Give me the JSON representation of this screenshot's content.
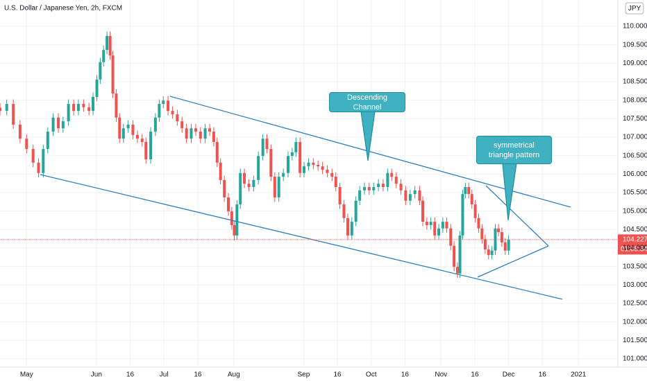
{
  "header": {
    "title": "U.S. Dollar / Japanese Yen, 2h, FXCM"
  },
  "chart_data": {
    "type": "candlestick",
    "x": [
      -11.8,
      -8.8,
      -5.9,
      -2.9,
      0,
      2.9,
      5.3,
      7.4,
      9.4,
      11.8,
      14.1,
      16.2,
      18.6,
      20.9,
      23.0,
      25.3,
      27.7,
      29.5,
      31.2,
      32.7,
      34.2,
      35.7,
      37.1,
      38.3,
      39.8,
      41.3,
      43.0,
      45.1,
      47.2,
      49.2,
      51.3,
      53.0,
      55.1,
      57.2,
      58.9,
      60.7,
      62.8,
      64.8,
      66.9,
      69.0,
      71.0,
      73.1,
      75.1,
      77.2,
      79.3,
      81.3,
      83.1,
      84.6,
      86.1,
      87.8,
      89.6,
      91.1,
      92.2,
      93.4,
      94.9,
      96.7,
      98.7,
      100.8,
      102.9,
      104.9,
      106.7,
      108.5,
      110.2,
      112.0,
      114.0,
      116.1,
      117.9,
      119.6,
      121.4,
      123.2,
      125.2,
      127.3,
      129.4,
      131.4,
      133.5,
      135.6,
      137.3,
      139.1,
      140.9,
      142.6,
      144.4,
      146.2,
      147.9,
      150.0,
      152.1,
      154.1,
      156.2,
      158.3,
      160.3,
      162.1,
      164.1,
      166.2,
      168.3,
      170.3,
      172.4,
      174.5,
      175.9,
      177.7,
      179.5,
      181.2,
      183.0,
      184.8,
      186.5,
      188.3,
      189.8,
      191.3,
      192.4,
      193.6,
      194.8,
      196.3,
      197.7,
      199.2,
      200.7,
      202.2,
      203.6,
      205.1,
      206.6,
      208.1,
      209.5,
      211.0,
      212.5,
      214.0
    ],
    "open": [
      107.8,
      107.71,
      107.9,
      107.34,
      106.96,
      106.68,
      106.31,
      106.03,
      106.68,
      107.15,
      107.53,
      107.24,
      107.43,
      107.9,
      107.71,
      107.9,
      107.81,
      107.71,
      108.09,
      108.56,
      109.03,
      109.36,
      109.74,
      109.21,
      108.18,
      107.53,
      106.96,
      107.24,
      107.34,
      107.06,
      106.96,
      106.87,
      106.4,
      107.15,
      107.53,
      107.9,
      107.99,
      107.71,
      107.62,
      107.43,
      107.24,
      106.96,
      107.24,
      107.15,
      106.96,
      107.24,
      107.15,
      106.87,
      106.31,
      105.84,
      105.37,
      104.99,
      104.62,
      104.34,
      105.18,
      106.03,
      105.74,
      105.65,
      105.84,
      106.49,
      106.96,
      106.68,
      105.93,
      105.37,
      105.93,
      106.03,
      106.49,
      106.59,
      106.87,
      106.03,
      106.21,
      106.31,
      106.25,
      106.21,
      106.12,
      106.03,
      105.93,
      105.65,
      105.18,
      104.81,
      104.34,
      104.71,
      105.28,
      105.56,
      105.65,
      105.56,
      105.65,
      105.74,
      105.65,
      106.03,
      105.93,
      105.74,
      105.56,
      105.28,
      105.46,
      105.56,
      105.28,
      104.71,
      104.62,
      104.71,
      104.34,
      104.53,
      104.71,
      104.53,
      104.06,
      103.49,
      103.31,
      104.34,
      105.46,
      105.65,
      105.46,
      105.18,
      104.81,
      104.53,
      104.24,
      103.96,
      103.81,
      103.93,
      104.53,
      104.43,
      104.15,
      103.93
    ],
    "high": [
      107.92,
      108.02,
      108.02,
      107.46,
      107.08,
      106.8,
      106.43,
      106.8,
      107.27,
      107.65,
      107.65,
      107.55,
      108.02,
      108.02,
      108.02,
      108.02,
      107.93,
      108.21,
      108.68,
      109.15,
      109.48,
      109.86,
      109.86,
      109.33,
      108.3,
      107.65,
      107.36,
      107.46,
      107.46,
      107.18,
      107.08,
      106.99,
      107.27,
      107.65,
      108.02,
      108.11,
      108.11,
      107.83,
      107.74,
      107.55,
      107.36,
      107.36,
      107.36,
      107.27,
      107.36,
      107.36,
      107.27,
      106.99,
      106.43,
      105.96,
      105.49,
      105.11,
      104.74,
      105.3,
      106.15,
      106.15,
      105.86,
      105.96,
      106.61,
      107.08,
      107.08,
      106.8,
      106.05,
      106.05,
      106.15,
      106.61,
      106.71,
      106.99,
      106.99,
      106.33,
      106.43,
      106.43,
      106.37,
      106.33,
      106.24,
      106.15,
      106.05,
      105.77,
      105.3,
      104.93,
      104.83,
      105.4,
      105.68,
      105.77,
      105.77,
      105.77,
      105.86,
      105.86,
      106.15,
      106.15,
      106.05,
      105.86,
      105.68,
      105.58,
      105.68,
      105.68,
      105.4,
      104.83,
      104.83,
      104.83,
      104.65,
      104.83,
      104.83,
      104.65,
      104.18,
      103.61,
      104.46,
      105.58,
      105.77,
      105.77,
      105.58,
      105.3,
      104.93,
      104.65,
      104.36,
      104.08,
      104.05,
      104.65,
      104.65,
      104.55,
      104.27,
      104.35
    ],
    "low": [
      107.59,
      107.59,
      107.22,
      106.84,
      106.56,
      106.19,
      105.91,
      105.91,
      106.56,
      107.03,
      107.12,
      107.12,
      107.31,
      107.59,
      107.59,
      107.69,
      107.59,
      107.59,
      107.97,
      108.44,
      108.91,
      109.24,
      109.09,
      108.06,
      107.41,
      106.84,
      106.84,
      107.12,
      106.94,
      106.84,
      106.75,
      106.28,
      106.28,
      107.03,
      107.41,
      107.78,
      107.59,
      107.5,
      107.31,
      107.12,
      106.84,
      106.84,
      107.03,
      106.84,
      106.84,
      107.03,
      106.75,
      106.19,
      105.72,
      105.25,
      104.87,
      104.5,
      104.2,
      104.22,
      105.06,
      105.62,
      105.53,
      105.53,
      105.72,
      106.37,
      106.56,
      105.81,
      105.25,
      105.25,
      105.81,
      105.91,
      106.37,
      106.47,
      105.91,
      105.91,
      106.09,
      106.13,
      106.09,
      106.0,
      105.91,
      105.81,
      105.53,
      105.06,
      104.69,
      104.22,
      104.22,
      104.59,
      105.16,
      105.44,
      105.44,
      105.44,
      105.53,
      105.53,
      105.53,
      105.81,
      105.62,
      105.44,
      105.16,
      105.16,
      105.34,
      105.16,
      104.59,
      104.5,
      104.5,
      104.22,
      104.22,
      104.41,
      104.41,
      103.94,
      103.37,
      103.19,
      103.19,
      104.22,
      105.34,
      105.34,
      105.06,
      104.69,
      104.41,
      104.12,
      103.84,
      103.69,
      103.69,
      103.81,
      104.31,
      104.03,
      103.81,
      103.81
    ],
    "close": [
      107.71,
      107.9,
      107.34,
      106.96,
      106.68,
      106.31,
      106.03,
      106.68,
      107.15,
      107.53,
      107.24,
      107.43,
      107.9,
      107.71,
      107.9,
      107.81,
      107.71,
      108.09,
      108.56,
      109.03,
      109.36,
      109.74,
      109.21,
      108.18,
      107.53,
      106.96,
      107.24,
      107.34,
      107.06,
      106.96,
      106.87,
      106.4,
      107.15,
      107.53,
      107.9,
      107.99,
      107.71,
      107.62,
      107.43,
      107.24,
      106.96,
      107.24,
      107.15,
      106.96,
      107.24,
      107.15,
      106.87,
      106.31,
      105.84,
      105.37,
      104.99,
      104.62,
      104.34,
      105.18,
      106.03,
      105.74,
      105.65,
      105.84,
      106.49,
      106.96,
      106.68,
      105.93,
      105.37,
      105.93,
      106.03,
      106.49,
      106.59,
      106.87,
      106.03,
      106.21,
      106.31,
      106.25,
      106.21,
      106.12,
      106.03,
      105.93,
      105.65,
      105.18,
      104.81,
      104.34,
      104.71,
      105.28,
      105.56,
      105.65,
      105.56,
      105.65,
      105.74,
      105.65,
      106.03,
      105.93,
      105.74,
      105.56,
      105.28,
      105.46,
      105.56,
      105.28,
      104.71,
      104.62,
      104.71,
      104.34,
      104.53,
      104.71,
      104.53,
      104.06,
      103.49,
      103.31,
      104.34,
      105.46,
      105.65,
      105.46,
      105.18,
      104.81,
      104.53,
      104.24,
      103.96,
      103.81,
      103.93,
      104.53,
      104.43,
      104.15,
      103.93,
      104.23
    ],
    "up_color": "#26a69a",
    "down_color": "#ef5350",
    "grid": true,
    "xlim": [
      -11.8,
      262.5
    ],
    "xticks": [
      {
        "value": 0,
        "label": "May"
      },
      {
        "value": 31,
        "label": "Jun"
      },
      {
        "value": 46,
        "label": "16"
      },
      {
        "value": 61,
        "label": "Jul"
      },
      {
        "value": 76,
        "label": "16"
      },
      {
        "value": 92,
        "label": "Aug"
      },
      {
        "value": 123,
        "label": "Sep"
      },
      {
        "value": 138,
        "label": "16"
      },
      {
        "value": 153,
        "label": "Oct"
      },
      {
        "value": 168,
        "label": "16"
      },
      {
        "value": 184,
        "label": "Nov"
      },
      {
        "value": 199,
        "label": "16"
      },
      {
        "value": 214,
        "label": "Dec"
      },
      {
        "value": 229,
        "label": "16"
      },
      {
        "value": 245,
        "label": "2021"
      }
    ],
    "ylim": [
      100.775,
      110.7125
    ],
    "yticks": [
      {
        "value": 101,
        "label": "101.000"
      },
      {
        "value": 101.5,
        "label": "101.500"
      },
      {
        "value": 102,
        "label": "102.000"
      },
      {
        "value": 102.5,
        "label": "102.500"
      },
      {
        "value": 103,
        "label": "103.000"
      },
      {
        "value": 103.5,
        "label": "103.500"
      },
      {
        "value": 104,
        "label": "104.000"
      },
      {
        "value": 104.5,
        "label": "104.500"
      },
      {
        "value": 105,
        "label": "105.000"
      },
      {
        "value": 105.5,
        "label": "105.500"
      },
      {
        "value": 106,
        "label": "106.000"
      },
      {
        "value": 106.5,
        "label": "106.500"
      },
      {
        "value": 107,
        "label": "107.000"
      },
      {
        "value": 107.5,
        "label": "107.500"
      },
      {
        "value": 108,
        "label": "108.000"
      },
      {
        "value": 108.5,
        "label": "108.500"
      },
      {
        "value": 109,
        "label": "109.000"
      },
      {
        "value": 109.5,
        "label": "109.500"
      },
      {
        "value": 110,
        "label": "110.000"
      }
    ],
    "currency": "JPY",
    "last_price": 104.227,
    "countdown": "01:08:34",
    "annotations": [
      "Descending Channel",
      "symmetrical triangle pattern"
    ]
  }
}
